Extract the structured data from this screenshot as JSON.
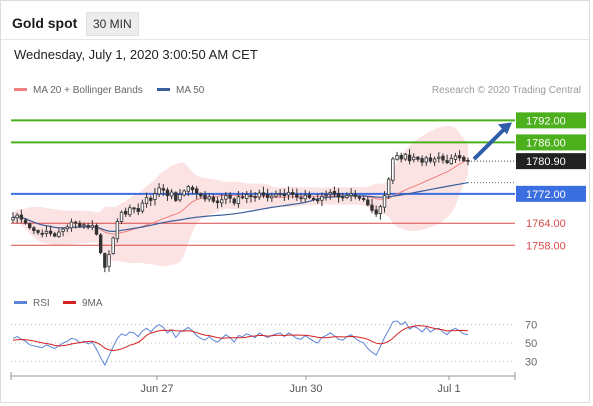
{
  "header": {
    "title": "Gold spot",
    "timeframe": "30 MIN",
    "datetime": "Wednesday, July 1, 2020 3:00:50 AM CET"
  },
  "legend": {
    "ma20_label": "MA 20 + Bollinger Bands",
    "ma20_color": "#f08080",
    "ma50_label": "MA 50",
    "ma50_color": "#3a5f9c",
    "copyright": "Research © 2020 Trading Central"
  },
  "rsi_legend": {
    "rsi_label": "RSI",
    "rsi_color": "#5b84d6",
    "ma9_label": "9MA",
    "ma9_color": "#d42020"
  },
  "colors": {
    "resistance": "#4caf1c",
    "support_strong": "#3b6ee0",
    "support": "#d84a4a",
    "current": "#222222",
    "arrow": "#2f5da8"
  },
  "chart_data": [
    {
      "type": "candlestick",
      "title": "Gold spot",
      "x_ticks": [
        "Jun 27",
        "Jun 30",
        "Jul 1"
      ],
      "ylim": [
        1748,
        1797
      ],
      "levels": [
        {
          "value": 1792.0,
          "label": "1792.00",
          "kind": "resistance"
        },
        {
          "value": 1786.0,
          "label": "1786.00",
          "kind": "resistance"
        },
        {
          "value": 1780.9,
          "label": "1780.90",
          "kind": "current"
        },
        {
          "value": 1772.0,
          "label": "1772.00",
          "kind": "support_strong"
        },
        {
          "value": 1764.0,
          "label": "1764.00",
          "kind": "support"
        },
        {
          "value": 1758.0,
          "label": "1758.00",
          "kind": "support"
        }
      ],
      "series": [
        {
          "name": "MA 20 + Bollinger Bands"
        },
        {
          "name": "MA 50"
        }
      ],
      "close": [
        1765.5,
        1766.2,
        1765.1,
        1764.0,
        1762.8,
        1762.0,
        1761.5,
        1761.0,
        1761.8,
        1761.2,
        1760.5,
        1761.6,
        1762.4,
        1763.0,
        1764.3,
        1764.1,
        1763.2,
        1763.6,
        1762.9,
        1763.4,
        1761.0,
        1756.0,
        1752.0,
        1755.5,
        1760.0,
        1764.5,
        1767.0,
        1766.5,
        1768.2,
        1768.0,
        1767.2,
        1769.5,
        1771.0,
        1770.2,
        1772.0,
        1773.6,
        1773.0,
        1771.5,
        1772.5,
        1770.2,
        1771.8,
        1772.8,
        1774.0,
        1773.1,
        1772.2,
        1771.4,
        1770.6,
        1771.2,
        1770.0,
        1769.6,
        1770.4,
        1771.5,
        1770.8,
        1769.5,
        1771.2,
        1771.0,
        1771.8,
        1771.3,
        1771.0,
        1772.2,
        1771.6,
        1771.0,
        1771.4,
        1771.9,
        1772.0,
        1771.5,
        1772.4,
        1771.8,
        1771.1,
        1770.8,
        1771.6,
        1771.0,
        1770.5,
        1770.1,
        1771.3,
        1771.7,
        1772.4,
        1771.9,
        1771.1,
        1770.9,
        1771.5,
        1772.0,
        1771.3,
        1770.8,
        1770.5,
        1769.0,
        1767.5,
        1766.5,
        1768.5,
        1771.5,
        1776.0,
        1781.5,
        1782.4,
        1781.5,
        1782.8,
        1781.0,
        1782.0,
        1781.4,
        1780.6,
        1781.8,
        1780.9,
        1781.5,
        1782.0,
        1781.2,
        1780.5,
        1781.6,
        1782.3,
        1781.8,
        1781.0,
        1780.9
      ],
      "rsi": {
        "ticks": [
          70,
          50,
          30
        ],
        "ylim": [
          25,
          75
        ],
        "rsi": [
          55,
          57,
          54,
          52,
          48,
          47,
          46,
          45,
          48,
          46,
          44,
          47,
          50,
          52,
          55,
          54,
          50,
          52,
          49,
          51,
          43,
          34,
          26,
          36,
          46,
          55,
          60,
          58,
          62,
          61,
          57,
          63,
          66,
          62,
          67,
          70,
          67,
          61,
          64,
          56,
          62,
          64,
          67,
          63,
          58,
          55,
          53,
          57,
          53,
          51,
          55,
          59,
          56,
          51,
          58,
          57,
          60,
          58,
          56,
          61,
          58,
          56,
          58,
          60,
          61,
          57,
          61,
          58,
          55,
          54,
          58,
          55,
          52,
          50,
          56,
          58,
          61,
          58,
          54,
          53,
          57,
          59,
          55,
          52,
          50,
          44,
          40,
          37,
          46,
          56,
          64,
          73,
          74,
          70,
          73,
          65,
          68,
          66,
          62,
          67,
          62,
          65,
          66,
          62,
          59,
          64,
          66,
          63,
          60,
          59
        ],
        "ma9": [
          53,
          53.5,
          53.8,
          53.6,
          53,
          52.2,
          51.2,
          50.1,
          49.5,
          48.6,
          47.4,
          46.8,
          47.2,
          47.8,
          48.9,
          49.8,
          50.4,
          51.1,
          51.6,
          51.8,
          50.4,
          47.9,
          44.3,
          42.5,
          41.8,
          42.4,
          43.7,
          45.3,
          47.6,
          48.9,
          50.6,
          54.1,
          58.5,
          60.8,
          62.0,
          63.3,
          63.9,
          63.6,
          64.2,
          63.3,
          63.1,
          63.0,
          63.3,
          62.7,
          61.2,
          59.8,
          58.6,
          58.0,
          57.0,
          55.9,
          55.1,
          55.4,
          55.8,
          55.6,
          55.7,
          55.6,
          56.4,
          57.3,
          57.6,
          58.3,
          58.2,
          57.5,
          57.9,
          58.4,
          58.5,
          58.1,
          58.6,
          58.6,
          58.7,
          58.4,
          58.4,
          57.9,
          57.1,
          56.2,
          55.8,
          55.8,
          56.2,
          56.7,
          56.8,
          56.6,
          56.8,
          57.2,
          57.0,
          56.1,
          55.3,
          54.0,
          51.9,
          49.8,
          49.0,
          49.9,
          51.8,
          55.1,
          59.4,
          63.0,
          65.9,
          67.3,
          68.4,
          68.9,
          68.6,
          68.2,
          66.9,
          65.9,
          64.9,
          64.2,
          63.0,
          63.3,
          63.5,
          63.7,
          63.6,
          63.4
        ]
      }
    }
  ]
}
